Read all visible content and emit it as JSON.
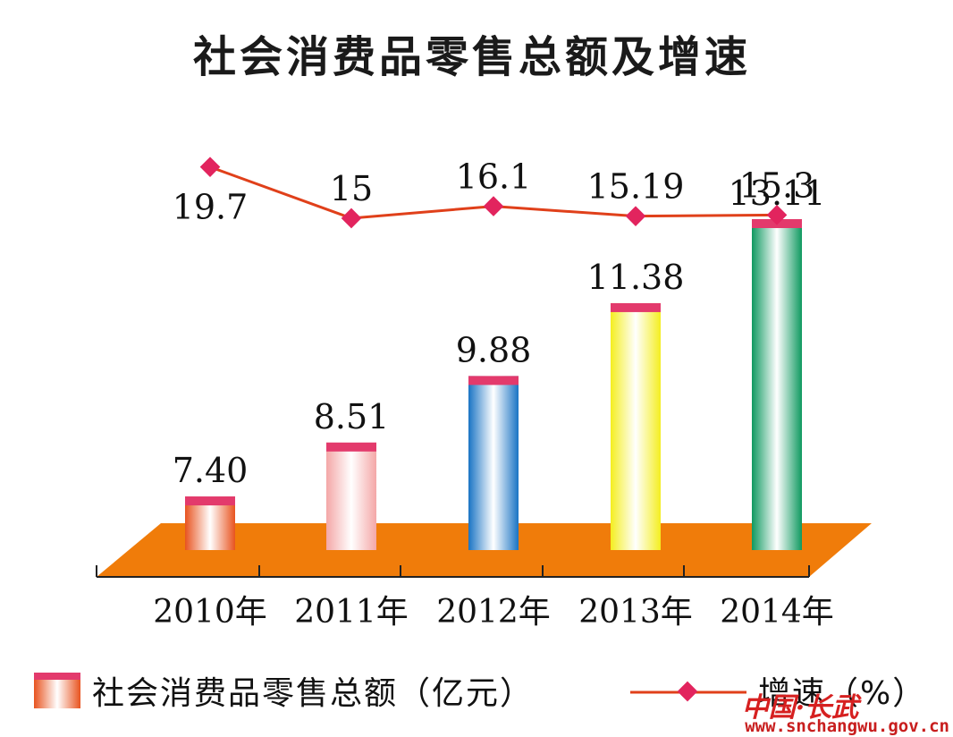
{
  "chart_data": {
    "type": "bar",
    "title": "社会消费品零售总额及增速",
    "categories": [
      "2010年",
      "2011年",
      "2012年",
      "2013年",
      "2014年"
    ],
    "series": [
      {
        "name": "社会消费品零售总额（亿元）",
        "type": "bar",
        "values": [
          7.4,
          8.51,
          9.88,
          11.38,
          13.11
        ],
        "labels": [
          "7.40",
          "8.51",
          "9.88",
          "11.38",
          "13.11"
        ],
        "colors": [
          "#e8531f",
          "#f4a7a7",
          "#1a74c4",
          "#f4ee20",
          "#0f9960"
        ]
      },
      {
        "name": "增速（%）",
        "type": "line",
        "values": [
          19.7,
          15,
          16.1,
          15.19,
          15.3
        ],
        "labels": [
          "19.7",
          "15",
          "16.1",
          "15.19",
          "15.3"
        ],
        "color": "#e0401a",
        "marker_color": "#e2245e"
      }
    ],
    "bar_cap_color": "#e33a6c",
    "floor_color": "#f07c0a"
  },
  "legend": {
    "bar_label": "社会消费品零售总额（亿元）",
    "line_label": "增速（%）"
  },
  "watermark": {
    "cn": "中国·长武",
    "url": "www.snchangwu.gov.cn"
  }
}
